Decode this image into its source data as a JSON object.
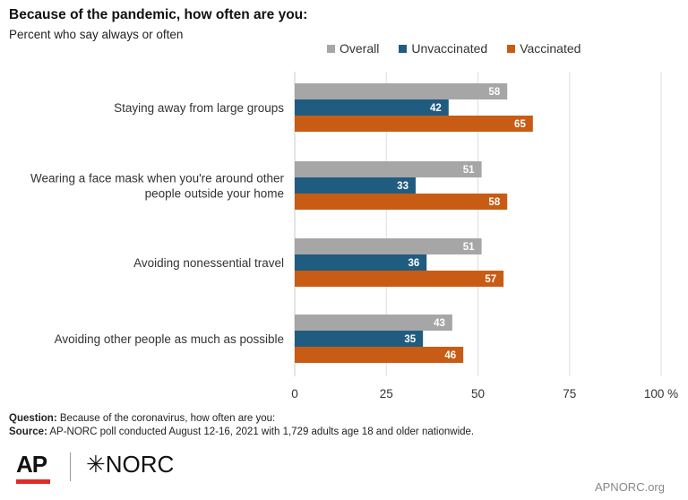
{
  "title": "Because of the pandemic, how often are you:",
  "subtitle": "Percent who say always or often",
  "legend": [
    {
      "name": "Overall",
      "color": "#a6a6a6"
    },
    {
      "name": "Unvaccinated",
      "color": "#1f5c80"
    },
    {
      "name": "Vaccinated",
      "color": "#c95c14"
    }
  ],
  "chart_data": {
    "type": "bar",
    "orientation": "horizontal",
    "categories": [
      [
        "Staying away from large groups"
      ],
      [
        "Wearing a face mask when you're around other",
        "people outside your home"
      ],
      [
        "Avoiding nonessential travel"
      ],
      [
        "Avoiding other people as much as possible"
      ]
    ],
    "series": [
      {
        "name": "Overall",
        "color": "#a6a6a6",
        "values": [
          58,
          51,
          51,
          43
        ]
      },
      {
        "name": "Unvaccinated",
        "color": "#1f5c80",
        "values": [
          42,
          33,
          36,
          35
        ]
      },
      {
        "name": "Vaccinated",
        "color": "#c95c14",
        "values": [
          65,
          58,
          57,
          46
        ]
      }
    ],
    "xlim": [
      0,
      100
    ],
    "xticks": [
      0,
      25,
      50,
      75,
      100
    ],
    "xtick_labels": [
      "0",
      "25",
      "50",
      "75",
      "100 %"
    ],
    "grid": true,
    "legend_position": "top-right"
  },
  "notes": {
    "question_label": "Question:",
    "question_text": "Because of the coronavirus, how often are you:",
    "source_label": "Source:",
    "source_text": "AP-NORC poll conducted August 12-16, 2021 with 1,729 adults age 18 and older nationwide."
  },
  "logos": {
    "ap": "AP",
    "norc": "✳NORC"
  },
  "footer_site": "APNORC.org"
}
